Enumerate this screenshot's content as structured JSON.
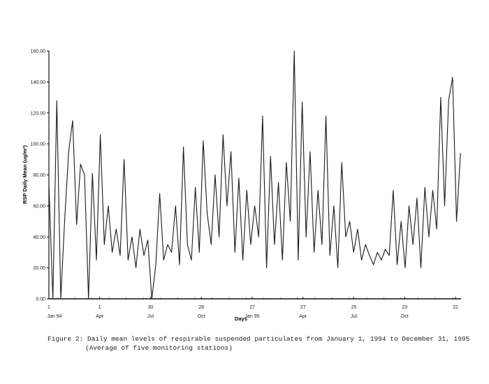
{
  "chart_data": {
    "type": "line",
    "title": "",
    "xlabel": "Days",
    "ylabel": "RSP Daily Mean (ug/m³)",
    "ylim": [
      0,
      160
    ],
    "yticks": [
      "0.00",
      "20.00",
      "40.00",
      "60.00",
      "80.00",
      "100.00",
      "120.00",
      "140.00",
      "160.00"
    ],
    "xticks": [
      {
        "day": "1",
        "month": "Jan 94"
      },
      {
        "day": "1",
        "month": "Apr"
      },
      {
        "day": "30",
        "month": "Jul"
      },
      {
        "day": "28",
        "month": "Oct"
      },
      {
        "day": "27",
        "month": "Jan 95"
      },
      {
        "day": "27",
        "month": "Apr"
      },
      {
        "day": "25",
        "month": "Jul"
      },
      {
        "day": "23",
        "month": "Oct"
      },
      {
        "day": "22",
        "month": ""
      }
    ],
    "grid": false,
    "line_color": "#1a1a1a",
    "x": [
      "1994-01-01",
      "1994-01-08",
      "1994-01-15",
      "1994-01-22",
      "1994-01-29",
      "1994-02-05",
      "1994-02-12",
      "1994-02-19",
      "1994-02-26",
      "1994-03-05",
      "1994-03-12",
      "1994-03-19",
      "1994-03-26",
      "1994-04-02",
      "1994-04-09",
      "1994-04-16",
      "1994-04-23",
      "1994-04-30",
      "1994-05-07",
      "1994-05-14",
      "1994-05-21",
      "1994-05-28",
      "1994-06-04",
      "1994-06-11",
      "1994-06-18",
      "1994-06-25",
      "1994-07-02",
      "1994-07-09",
      "1994-07-16",
      "1994-07-23",
      "1994-07-30",
      "1994-08-06",
      "1994-08-13",
      "1994-08-20",
      "1994-08-27",
      "1994-09-03",
      "1994-09-10",
      "1994-09-17",
      "1994-09-24",
      "1994-10-01",
      "1994-10-08",
      "1994-10-15",
      "1994-10-22",
      "1994-10-29",
      "1994-11-05",
      "1994-11-12",
      "1994-11-19",
      "1994-11-26",
      "1994-12-03",
      "1994-12-10",
      "1994-12-17",
      "1994-12-24",
      "1994-12-31",
      "1995-01-07",
      "1995-01-14",
      "1995-01-21",
      "1995-01-28",
      "1995-02-04",
      "1995-02-11",
      "1995-02-18",
      "1995-02-25",
      "1995-03-04",
      "1995-03-11",
      "1995-03-18",
      "1995-03-25",
      "1995-04-01",
      "1995-04-08",
      "1995-04-15",
      "1995-04-22",
      "1995-04-29",
      "1995-05-06",
      "1995-05-13",
      "1995-05-20",
      "1995-05-27",
      "1995-06-03",
      "1995-06-10",
      "1995-06-17",
      "1995-06-24",
      "1995-07-01",
      "1995-07-08",
      "1995-07-15",
      "1995-07-22",
      "1995-07-29",
      "1995-08-05",
      "1995-08-12",
      "1995-08-19",
      "1995-08-26",
      "1995-09-02",
      "1995-09-09",
      "1995-09-16",
      "1995-09-23",
      "1995-09-30",
      "1995-10-07",
      "1995-10-14",
      "1995-10-21",
      "1995-10-28",
      "1995-11-04",
      "1995-11-11",
      "1995-11-18",
      "1995-11-25",
      "1995-12-02",
      "1995-12-09",
      "1995-12-16",
      "1995-12-23",
      "1995-12-30"
    ],
    "values": [
      74,
      0,
      128,
      0,
      52,
      95,
      115,
      48,
      87,
      80,
      0,
      81,
      25,
      106,
      35,
      60,
      30,
      45,
      28,
      90,
      25,
      40,
      20,
      45,
      28,
      38,
      0,
      22,
      68,
      25,
      35,
      30,
      60,
      22,
      98,
      35,
      25,
      72,
      30,
      102,
      55,
      35,
      80,
      40,
      106,
      60,
      95,
      30,
      78,
      25,
      70,
      35,
      60,
      40,
      118,
      20,
      92,
      35,
      75,
      25,
      88,
      50,
      160,
      25,
      127,
      40,
      95,
      30,
      70,
      35,
      118,
      28,
      60,
      20,
      88,
      40,
      50,
      30,
      45,
      25,
      35,
      28,
      22,
      30,
      25,
      32,
      28,
      70,
      22,
      50,
      20,
      60,
      35,
      65,
      20,
      72,
      40,
      70,
      45,
      130,
      60,
      128,
      143,
      50,
      94
    ]
  },
  "caption": {
    "line1": "Figure 2: Daily mean levels of respirable suspended particulates from January 1, 1994 to December 31, 1995",
    "line2": "(Average of five monitoring stations)"
  }
}
